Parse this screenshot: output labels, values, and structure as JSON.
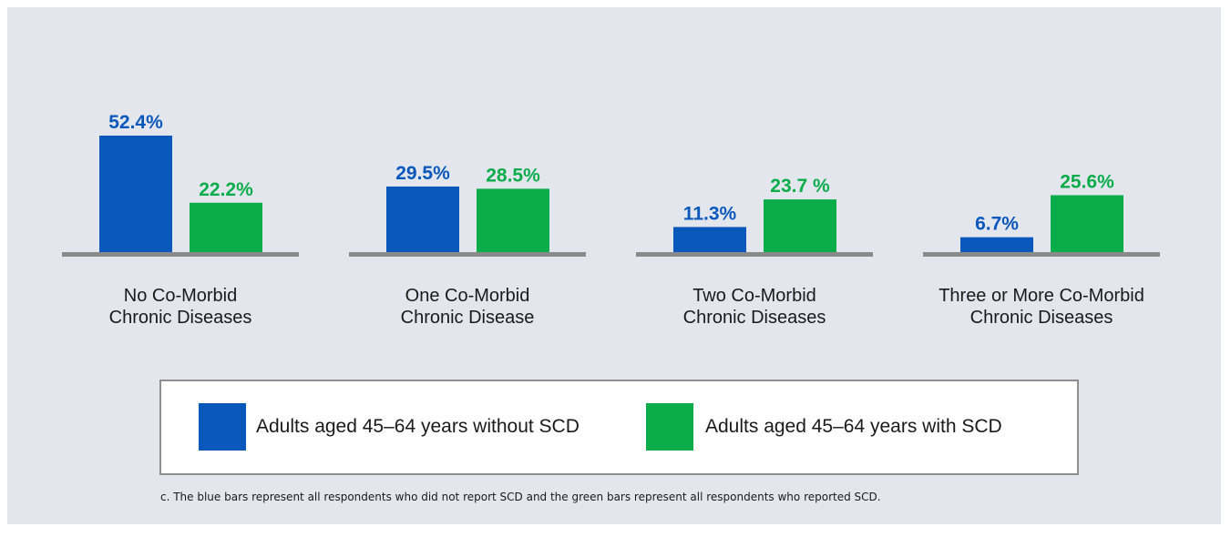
{
  "colors": {
    "without_scd": "#0a58bb",
    "with_scd": "#0bad4b",
    "axis": "#8a8a8a",
    "panel": "#e4e6ee"
  },
  "chart_data": {
    "type": "bar",
    "categories": [
      "No Co-Morbid\nChronic Diseases",
      "One Co-Morbid\nChronic Disease",
      "Two Co-Morbid\nChronic Diseases",
      "Three or More Co-Morbid\nChronic Diseases"
    ],
    "series": [
      {
        "name": "Adults aged 45–64 years without SCD",
        "values": [
          52.4,
          29.5,
          11.3,
          6.7
        ],
        "labels": [
          "52.4%",
          "29.5%",
          "11.3%",
          "6.7%"
        ],
        "color": "#0a58bb"
      },
      {
        "name": "Adults aged 45–64 years with SCD",
        "values": [
          22.2,
          28.5,
          23.7,
          25.6
        ],
        "labels": [
          "22.2%",
          "28.5%",
          "23.7 %",
          "25.6%"
        ],
        "color": "#0bad4b"
      }
    ],
    "ylim": [
      0,
      60
    ],
    "grid": false,
    "legend_position": "bottom"
  },
  "legend": {
    "items": [
      "Adults aged 45–64 years without SCD",
      "Adults aged 45–64 years with SCD"
    ]
  },
  "footnote": "c. The blue bars represent all respondents who did not report SCD and the green bars represent all respondents who reported SCD."
}
